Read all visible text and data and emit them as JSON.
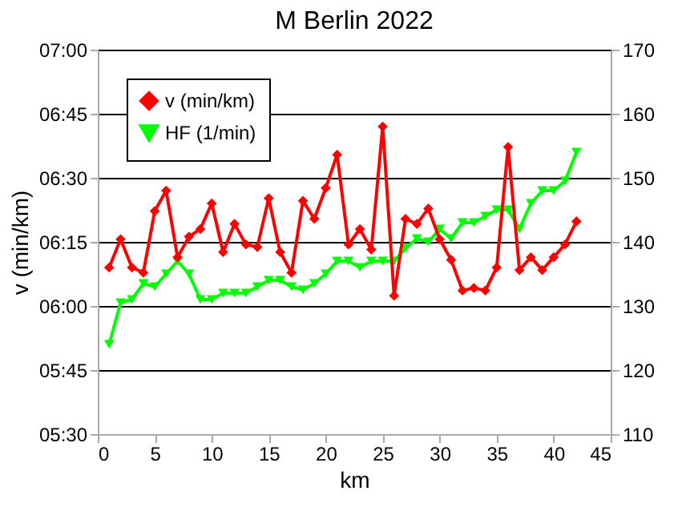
{
  "chart_data": {
    "type": "line",
    "title": "M Berlin 2022",
    "xlabel": "km",
    "ylabel": "v (min/km)",
    "x": [
      1,
      2,
      3,
      4,
      5,
      6,
      7,
      8,
      9,
      10,
      11,
      12,
      13,
      14,
      15,
      16,
      17,
      18,
      19,
      20,
      21,
      22,
      23,
      24,
      25,
      26,
      27,
      28,
      29,
      30,
      31,
      32,
      33,
      34,
      35,
      36,
      37,
      38,
      39,
      40,
      41,
      42
    ],
    "series": [
      {
        "name": "v (min/km)",
        "color": "#ff0000",
        "marker": "diamond",
        "values": [
          6.15,
          6.26,
          6.15,
          6.13,
          6.37,
          6.45,
          6.19,
          6.27,
          6.3,
          6.4,
          6.21,
          6.32,
          6.24,
          6.23,
          6.42,
          6.21,
          6.13,
          6.41,
          6.34,
          6.46,
          6.59,
          6.24,
          6.3,
          6.22,
          6.7,
          6.04,
          6.34,
          6.32,
          6.38,
          6.26,
          6.18,
          6.06,
          6.07,
          6.06,
          6.15,
          6.62,
          6.14,
          6.19,
          6.14,
          6.19,
          6.24,
          6.33
        ]
      },
      {
        "name": "HF (1/min)",
        "color": "#00ff00",
        "marker": "triangle",
        "axis": "y2",
        "values": [
          124,
          130.5,
          131,
          133.5,
          133,
          135,
          137,
          135,
          131,
          131,
          132,
          132,
          132,
          133,
          134,
          134,
          133,
          132.5,
          133.5,
          135,
          137,
          137,
          136,
          137,
          137,
          137,
          139,
          140.5,
          140,
          142,
          140.5,
          143,
          143,
          144,
          145,
          145,
          142,
          146,
          148,
          148,
          149.5,
          154
        ]
      }
    ],
    "xlim": [
      0,
      45
    ],
    "xticks": [
      0,
      5,
      10,
      15,
      20,
      25,
      30,
      35,
      40,
      45
    ],
    "ylim": [
      5.5,
      7.0
    ],
    "yticks": [
      {
        "value": 5.5,
        "label": "05:30"
      },
      {
        "value": 5.75,
        "label": "05:45"
      },
      {
        "value": 6.0,
        "label": "06:00"
      },
      {
        "value": 6.25,
        "label": "06:15"
      },
      {
        "value": 6.5,
        "label": "06:30"
      },
      {
        "value": 6.75,
        "label": "06:45"
      },
      {
        "value": 7.0,
        "label": "07:00"
      }
    ],
    "y2lim": [
      110,
      170
    ],
    "y2ticks": [
      110,
      120,
      130,
      140,
      150,
      160,
      170
    ],
    "grid": "y",
    "legend": "top left"
  }
}
